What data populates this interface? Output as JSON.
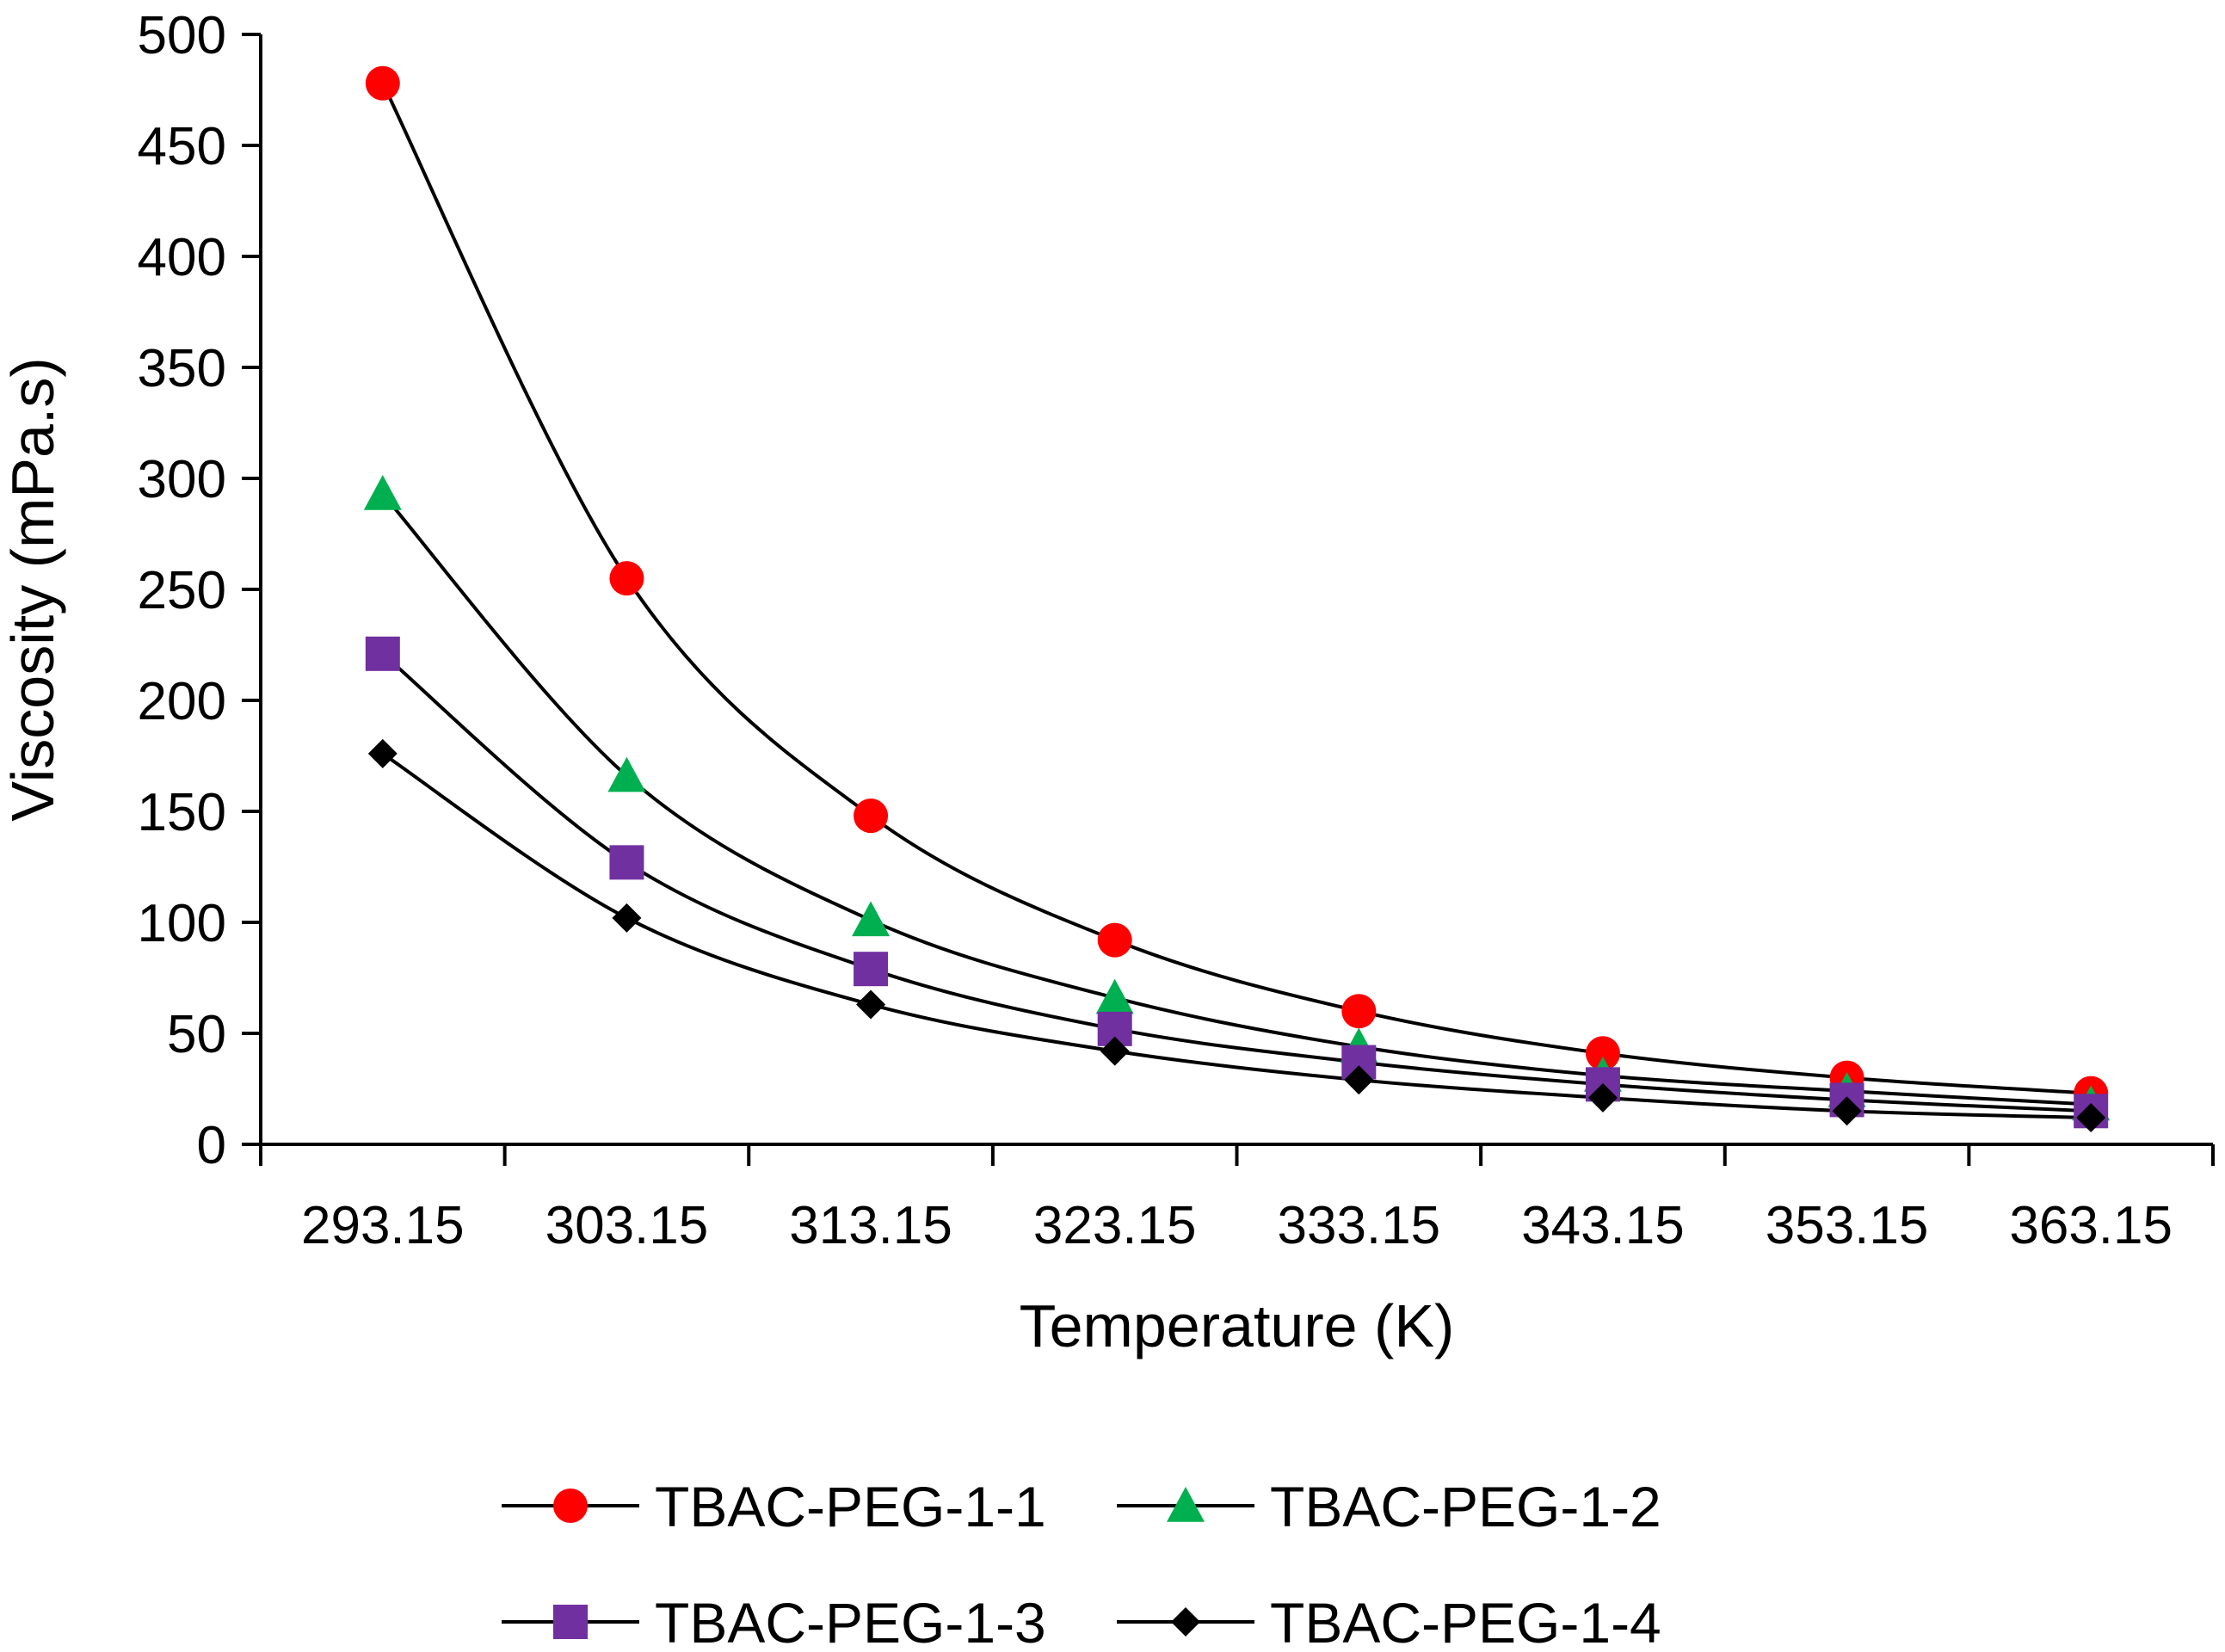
{
  "chart_data": {
    "type": "line",
    "xlabel": "Temperature (K)",
    "ylabel": "Viscosity (mPa.s)",
    "x_axis": {
      "range": [
        288.15,
        368.15
      ],
      "major_ticks": [
        288.15,
        298.15,
        308.15,
        318.15,
        328.15,
        338.15,
        348.15,
        358.15,
        368.15
      ],
      "tick_labels": [
        "293.15",
        "303.15",
        "313.15",
        "323.15",
        "333.15",
        "343.15",
        "353.15",
        "363.15"
      ]
    },
    "y_axis": {
      "range": [
        0,
        500
      ],
      "ticks": [
        0,
        50,
        100,
        150,
        200,
        250,
        300,
        350,
        400,
        450,
        500
      ],
      "tick_labels": [
        "0",
        "50",
        "100",
        "150",
        "200",
        "250",
        "300",
        "350",
        "400",
        "450",
        "500"
      ]
    },
    "grid": false,
    "legend_position": "bottom",
    "x": [
      293.15,
      303.15,
      313.15,
      323.15,
      333.15,
      343.15,
      353.15,
      363.15
    ],
    "series": [
      {
        "name": "TBAC-PEG-1-1",
        "marker": "circle",
        "color": "#ff0000",
        "values": [
          478,
          255,
          148,
          92,
          60,
          41,
          30,
          23
        ]
      },
      {
        "name": "TBAC-PEG-1-2",
        "marker": "triangle",
        "color": "#00b050",
        "values": [
          293,
          166,
          101,
          66,
          44,
          31,
          24,
          18
        ]
      },
      {
        "name": "TBAC-PEG-1-3",
        "marker": "square",
        "color": "#7030a0",
        "values": [
          221,
          127,
          79,
          52,
          37,
          27,
          20,
          15
        ]
      },
      {
        "name": "TBAC-PEG-1-4",
        "marker": "diamond",
        "color": "#000000",
        "values": [
          176,
          102,
          63,
          42,
          29,
          21,
          15,
          12
        ]
      }
    ],
    "line_color": "#000000",
    "axis_color": "#000000"
  }
}
